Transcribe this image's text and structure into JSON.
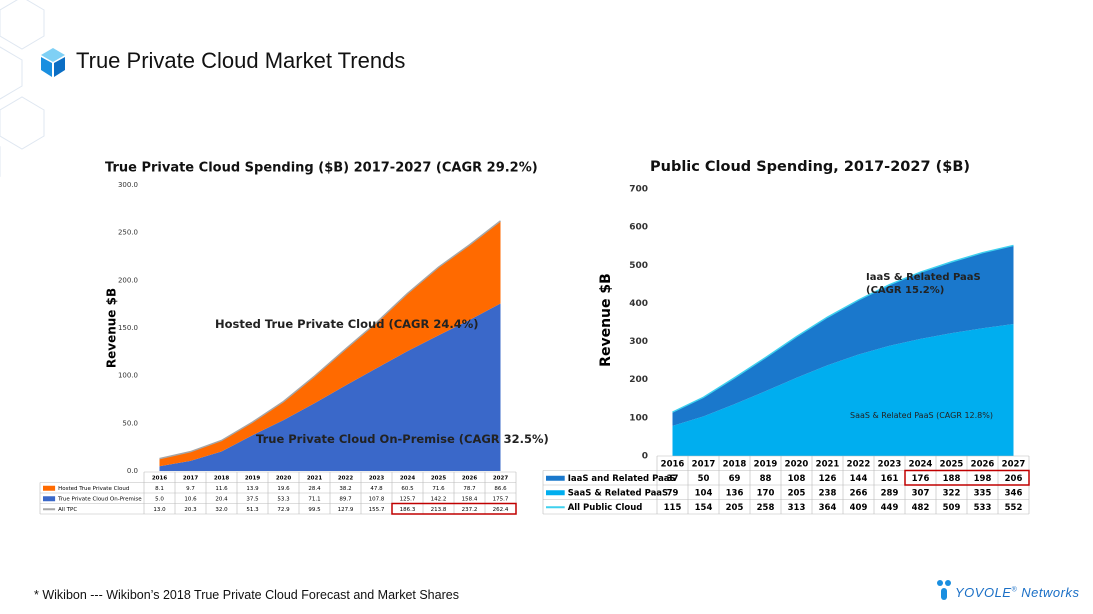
{
  "header": {
    "title": "True Private Cloud Market Trends"
  },
  "chart_data": [
    {
      "type": "area",
      "title": "True Private Cloud Spending ($B) 2017-2027 (CAGR 29.2%)",
      "y_label": "Revenue $B",
      "categories": [
        "2016",
        "2017",
        "2018",
        "2019",
        "2020",
        "2021",
        "2022",
        "2023",
        "2024",
        "2025",
        "2026",
        "2027"
      ],
      "ylim": [
        0,
        300
      ],
      "yticks": [
        {
          "value": 0,
          "label": "0.0"
        },
        {
          "value": 50,
          "label": "50.0"
        },
        {
          "value": 100,
          "label": "100.0"
        },
        {
          "value": 150,
          "label": "150.0"
        },
        {
          "value": 200,
          "label": "200.0"
        },
        {
          "value": 250,
          "label": "250.0"
        },
        {
          "value": 300,
          "label": "300.0"
        }
      ],
      "grid": false,
      "series": [
        {
          "name": "Hosted True Private Cloud",
          "color": "#ff6a00",
          "stacked": true,
          "values": [
            8.1,
            9.7,
            11.6,
            13.9,
            19.6,
            28.4,
            38.2,
            47.8,
            60.5,
            71.6,
            78.7,
            86.6
          ]
        },
        {
          "name": "True Private Cloud On-Premise",
          "color": "#3a68c9",
          "stacked": true,
          "values": [
            5,
            10.6,
            20.4,
            37.5,
            53.3,
            71.1,
            89.7,
            107.8,
            125.7,
            142.2,
            158.4,
            175.7
          ],
          "value_labels": [
            "5.0",
            "10.6",
            "20.4",
            "37.5",
            "53.3",
            "71.1",
            "89.7",
            "107.8",
            "125.7",
            "142.2",
            "158.4",
            "175.7"
          ]
        },
        {
          "name": "All TPC",
          "color": "#a6a6a6",
          "stacked": false,
          "values": [
            13,
            20.3,
            32,
            51.3,
            72.9,
            99.5,
            127.9,
            155.7,
            186.3,
            213.8,
            237.2,
            262.4
          ],
          "value_labels": [
            "13.0",
            "20.3",
            "32.0",
            "51.3",
            "72.9",
            "99.5",
            "127.9",
            "155.7",
            "186.3",
            "213.8",
            "237.2",
            "262.4"
          ]
        }
      ],
      "annotations": [
        "Hosted True Private Cloud (CAGR 24.4%)",
        "True Private Cloud On-Premise (CAGR 32.5%)"
      ]
    },
    {
      "type": "area",
      "title": "Public Cloud Spending, 2017-2027 ($B)",
      "y_label": "Revenue $B",
      "categories": [
        "2016",
        "2017",
        "2018",
        "2019",
        "2020",
        "2021",
        "2022",
        "2023",
        "2024",
        "2025",
        "2026",
        "2027"
      ],
      "ylim": [
        0,
        700
      ],
      "yticks": [
        0,
        100,
        200,
        300,
        400,
        500,
        600,
        700
      ],
      "grid": false,
      "series": [
        {
          "name": "IaaS and Related PaaS",
          "color": "#1a78cc",
          "stacked": true,
          "values": [
            37,
            50,
            69,
            88,
            108,
            126,
            144,
            161,
            176,
            188,
            198,
            206
          ]
        },
        {
          "name": "SaaS & Related PaaS",
          "color": "#00aeef",
          "stacked": true,
          "values": [
            79,
            104,
            136,
            170,
            205,
            238,
            266,
            289,
            307,
            322,
            335,
            346
          ]
        },
        {
          "name": "All Public Cloud",
          "color": "#3fd0ee",
          "stacked": false,
          "values": [
            115,
            154,
            205,
            258,
            313,
            364,
            409,
            449,
            482,
            509,
            533,
            552
          ]
        }
      ],
      "annotations": [
        "IaaS & Related PaaS (CAGR 15.2%)",
        "SaaS & Related PaaS (CAGR 12.8%)"
      ]
    }
  ],
  "footnote": "* Wikibon --- Wikibon’s 2018 True Private Cloud Forecast and Market Shares",
  "logo": {
    "brand": "YOVOLE",
    "suffix": "Networks"
  }
}
